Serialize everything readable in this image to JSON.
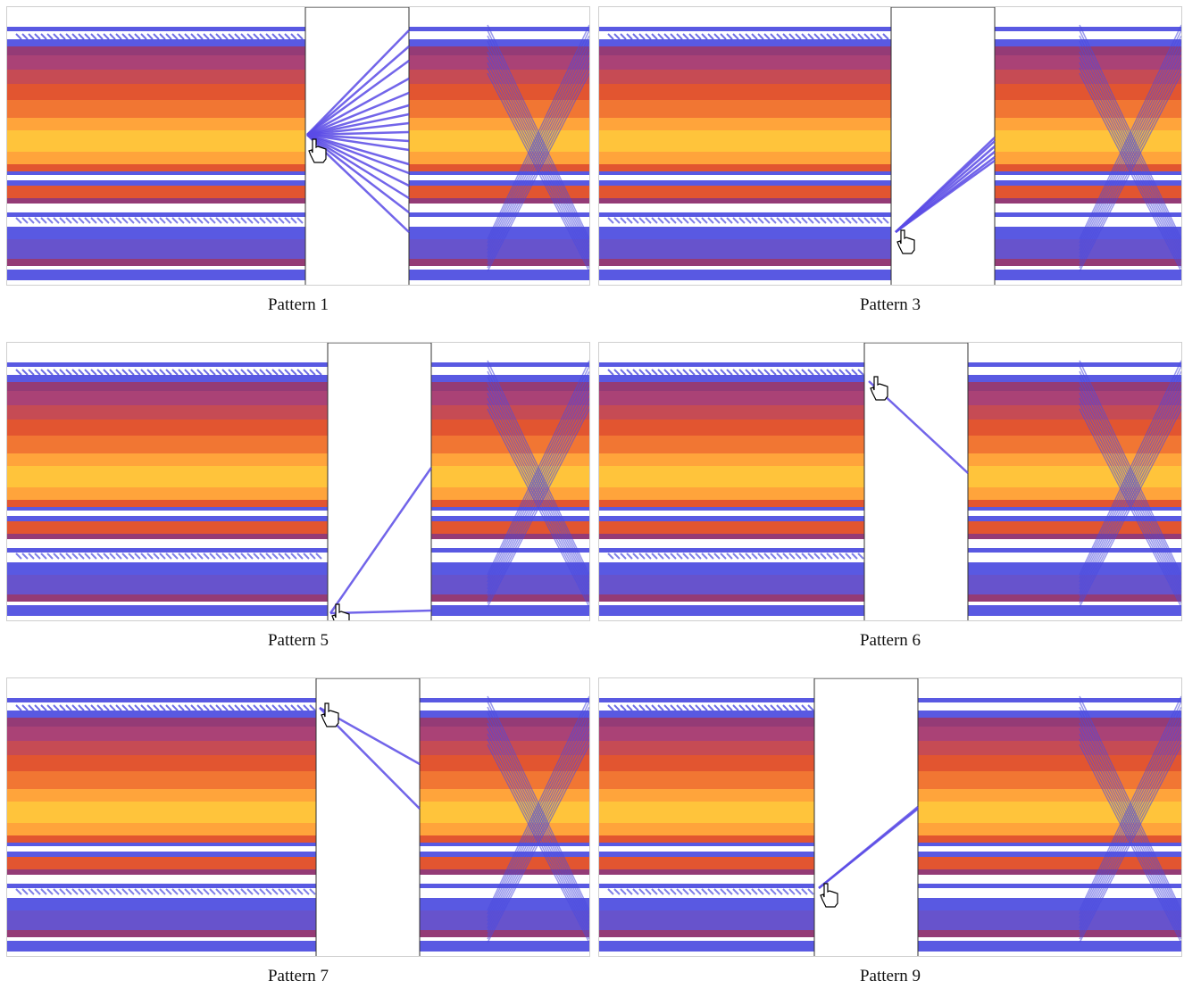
{
  "panels": [
    {
      "caption": "Pattern 1",
      "lens_col": 1,
      "cursor": "hand-pointer-icon"
    },
    {
      "caption": "Pattern 3",
      "lens_col": 2,
      "cursor": "hand-pointer-icon"
    },
    {
      "caption": "Pattern 5",
      "lens_col": 3,
      "cursor": "hand-pointer-icon"
    },
    {
      "caption": "Pattern 6",
      "lens_col": 4,
      "cursor": "hand-pointer-icon"
    },
    {
      "caption": "Pattern 7",
      "lens_col": 5,
      "cursor": "hand-pointer-icon"
    },
    {
      "caption": "Pattern 9",
      "lens_col": 6,
      "cursor": "hand-pointer-icon"
    }
  ],
  "colors": {
    "low_density": "#4b4bdf",
    "mid_density": "#8b2a6a",
    "high_density": "#e0471e",
    "peak_density": "#ffbf2a",
    "selected_lines": "#5a4be6",
    "lens_border": "#333333"
  }
}
